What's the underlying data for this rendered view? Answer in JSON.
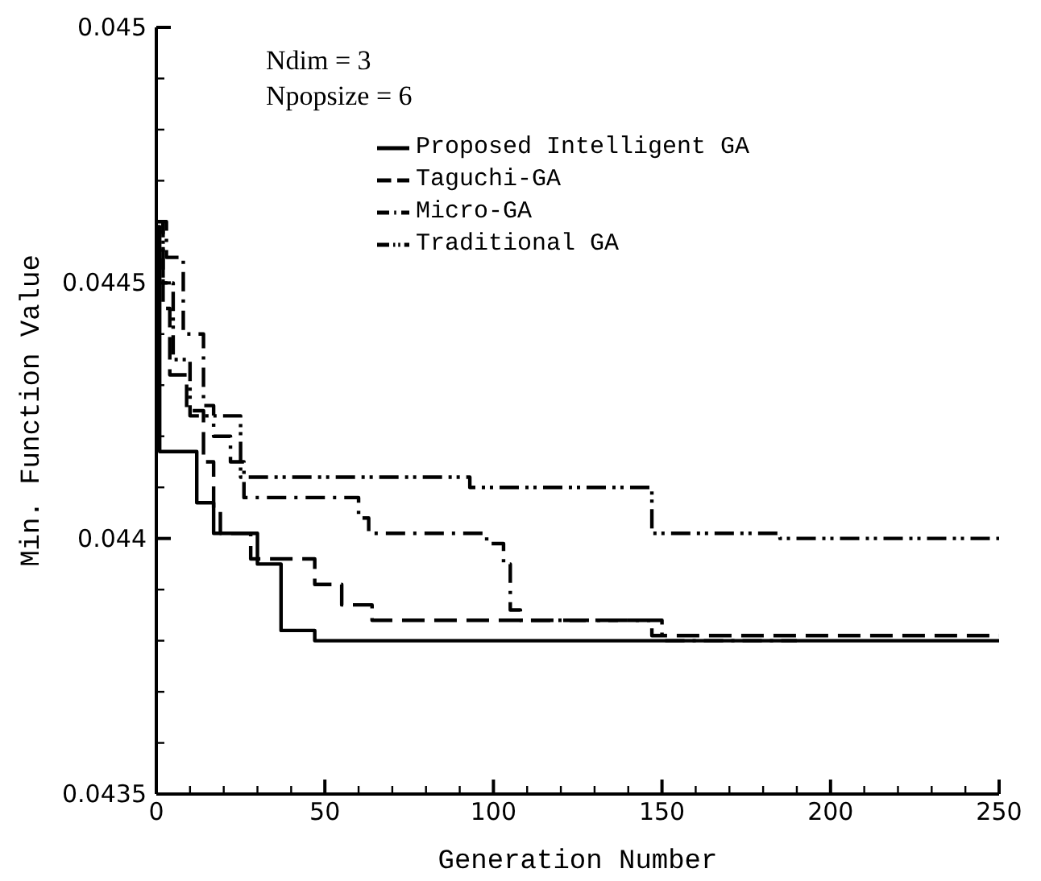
{
  "chart_data": {
    "type": "step",
    "xlabel": "Generation Number",
    "ylabel": "Min. Function Value",
    "annotations": [
      "Ndim = 3",
      "Npopsize = 6"
    ],
    "xlim": [
      0,
      250
    ],
    "ylim": [
      0.0435,
      0.045
    ],
    "xticks": [
      0,
      {
        "value": 10,
        "label": null
      },
      {
        "value": 20,
        "label": null
      },
      {
        "value": 30,
        "label": null
      },
      {
        "value": 40,
        "label": null
      },
      50,
      {
        "value": 60,
        "label": null
      },
      {
        "value": 70,
        "label": null
      },
      {
        "value": 80,
        "label": null
      },
      {
        "value": 90,
        "label": null
      },
      100,
      {
        "value": 110,
        "label": null
      },
      {
        "value": 120,
        "label": null
      },
      {
        "value": 130,
        "label": null
      },
      {
        "value": 140,
        "label": null
      },
      150,
      {
        "value": 160,
        "label": null
      },
      {
        "value": 170,
        "label": null
      },
      {
        "value": 180,
        "label": null
      },
      {
        "value": 190,
        "label": null
      },
      200,
      {
        "value": 210,
        "label": null
      },
      {
        "value": 220,
        "label": null
      },
      {
        "value": 230,
        "label": null
      },
      {
        "value": 240,
        "label": null
      },
      250
    ],
    "yticks": [
      0.0435,
      {
        "value": 0.0436,
        "label": null
      },
      {
        "value": 0.0437,
        "label": null
      },
      {
        "value": 0.0438,
        "label": null
      },
      {
        "value": 0.0439,
        "label": null
      },
      0.044,
      {
        "value": 0.0441,
        "label": null
      },
      {
        "value": 0.0442,
        "label": null
      },
      {
        "value": 0.0443,
        "label": null
      },
      {
        "value": 0.0444,
        "label": null
      },
      0.0445,
      {
        "value": 0.0446,
        "label": null
      },
      {
        "value": 0.0447,
        "label": null
      },
      {
        "value": 0.0448,
        "label": null
      },
      {
        "value": 0.0449,
        "label": null
      },
      0.045
    ],
    "legend": "top right",
    "marker": "none",
    "series": [
      {
        "name": "Proposed Intelligent GA",
        "color": "#000000",
        "line_style": "solid",
        "x": [
          0,
          1,
          12,
          17,
          30,
          37,
          47,
          250
        ],
        "values": [
          0.04461,
          0.04417,
          0.04407,
          0.04401,
          0.04395,
          0.04382,
          0.0438,
          0.0438
        ]
      },
      {
        "name": "Taguchi-GA",
        "color": "#000000",
        "line_style": "dashed",
        "x": [
          0,
          2,
          4,
          9,
          14,
          17,
          19,
          28,
          47,
          55,
          64,
          147,
          250
        ],
        "values": [
          0.04462,
          0.04445,
          0.04432,
          0.04425,
          0.04415,
          0.04406,
          0.04401,
          0.04396,
          0.04391,
          0.04387,
          0.04384,
          0.04381,
          0.04381
        ]
      },
      {
        "name": "Micro-GA",
        "color": "#000000",
        "line_style": "dashdot",
        "x": [
          0,
          3,
          8,
          14,
          17,
          22,
          26,
          60,
          63,
          98,
          103,
          105,
          108,
          150,
          190
        ],
        "values": [
          0.04462,
          0.04455,
          0.0444,
          0.04426,
          0.0442,
          0.04415,
          0.04408,
          0.04404,
          0.04401,
          0.04399,
          0.04395,
          0.04386,
          0.04384,
          0.0438,
          0.0438
        ]
      },
      {
        "name": "Traditional GA",
        "color": "#000000",
        "line_style": "dashdotdot",
        "x": [
          0,
          2,
          5,
          10,
          25,
          93,
          147,
          185,
          250
        ],
        "values": [
          0.04462,
          0.0445,
          0.04435,
          0.04424,
          0.04412,
          0.0441,
          0.04401,
          0.044,
          0.044
        ]
      }
    ]
  }
}
